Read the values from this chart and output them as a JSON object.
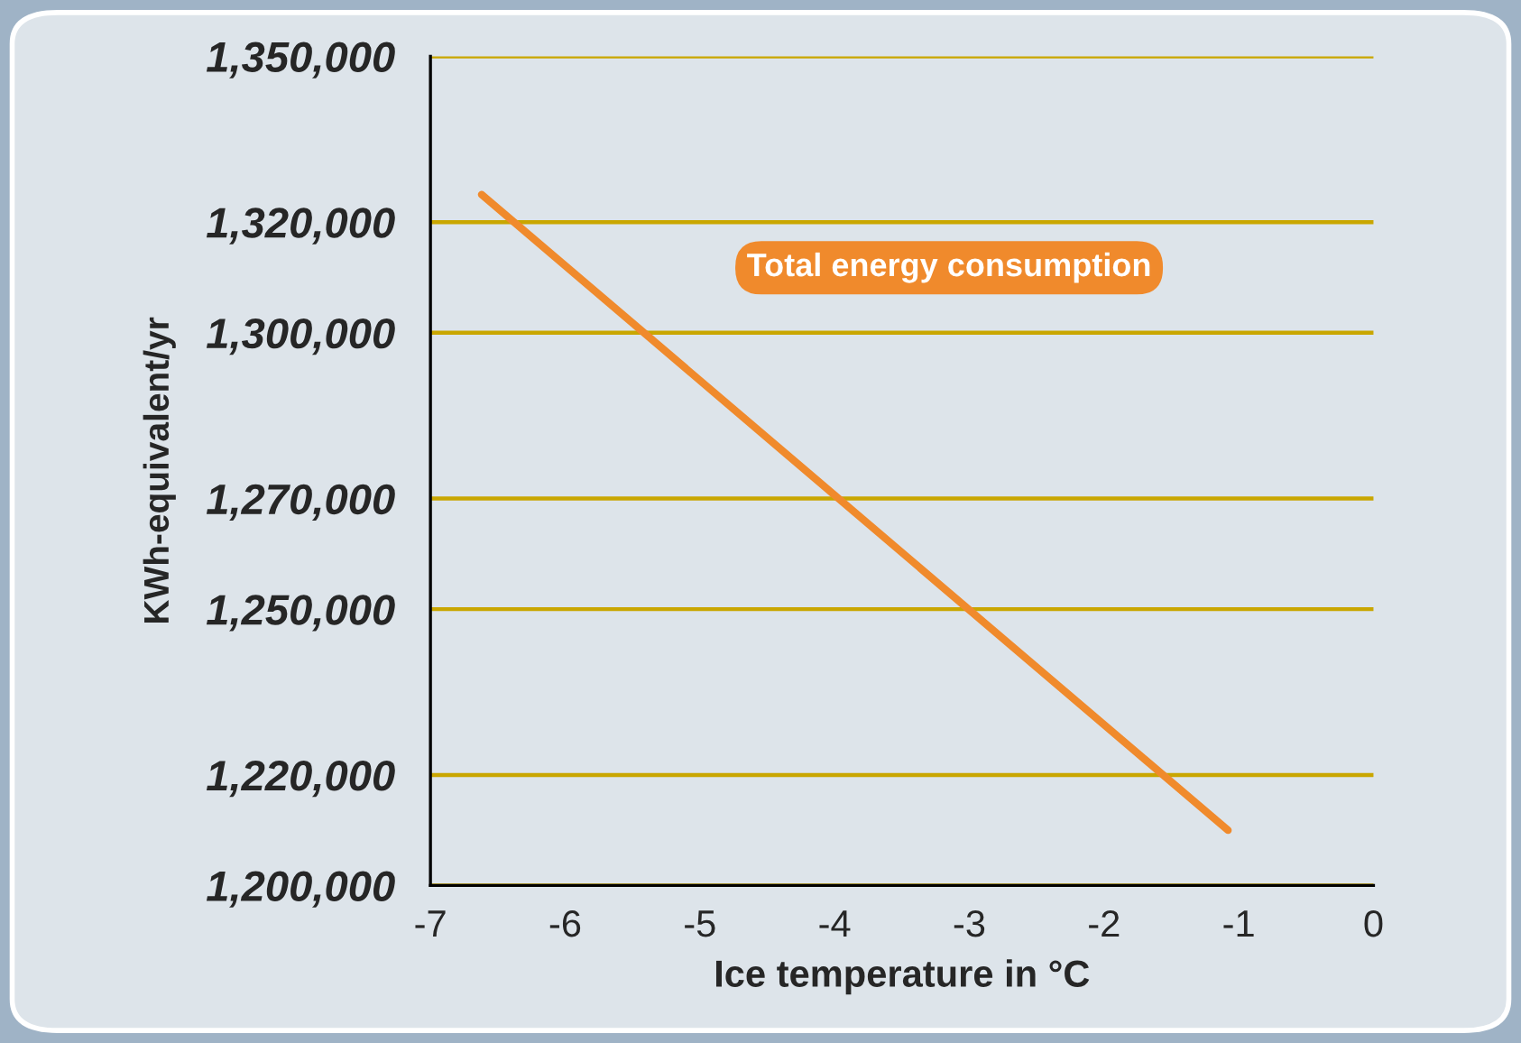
{
  "chart_data": {
    "type": "line",
    "xlabel": "Ice temperature in °C",
    "ylabel": "KWh-equivalent/yr",
    "series": [
      {
        "name": "Total energy consumption",
        "color": "#f08a2c",
        "x": [
          -6.62,
          -1.08
        ],
        "values": [
          1325000,
          1210000
        ]
      }
    ],
    "xlim": [
      -7,
      0
    ],
    "xticks": [
      -7,
      -6,
      -5,
      -4,
      -3,
      -2,
      -1,
      0
    ],
    "ylim": [
      1200000,
      1350000
    ],
    "yticks": [
      {
        "value": 1200000,
        "label": "1,200,000"
      },
      {
        "value": 1220000,
        "label": "1,220,000"
      },
      {
        "value": 1250000,
        "label": "1,250,000"
      },
      {
        "value": 1270000,
        "label": "1,270,000"
      },
      {
        "value": 1300000,
        "label": "1,300,000"
      },
      {
        "value": 1320000,
        "label": "1,320,000"
      },
      {
        "value": 1350000,
        "label": "1,350,000"
      }
    ],
    "grid": "y",
    "legend": false,
    "marker": "none",
    "line_style": "solid"
  }
}
